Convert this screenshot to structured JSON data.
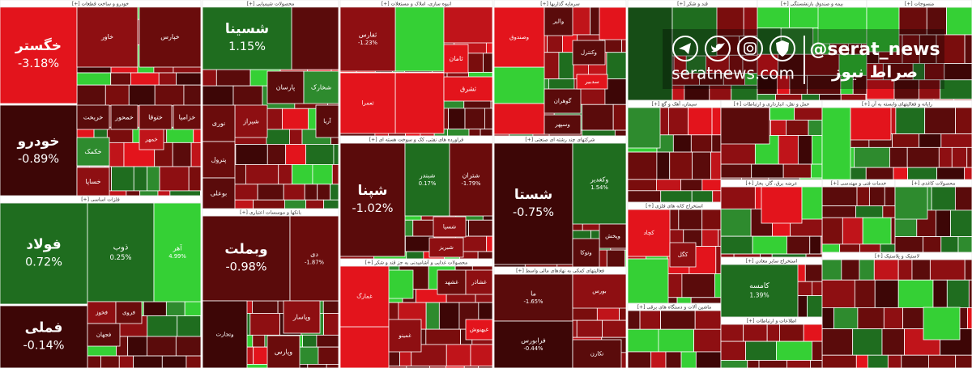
{
  "sectors": [
    {
      "title": "خودرو و ساخت قطعات [+]",
      "tiles": [
        {
          "label": "خگستر",
          "change": "-3.18%"
        },
        {
          "label": "خودرو",
          "change": "-0.89%"
        },
        {
          "label": "خاور"
        },
        {
          "label": "خپارس"
        },
        {
          "label": "خریخت"
        },
        {
          "label": "خمحور"
        },
        {
          "label": "ختوقا"
        },
        {
          "label": "خزامیا"
        },
        {
          "label": "خکمک"
        },
        {
          "label": "خمهر"
        },
        {
          "label": "خساپا"
        }
      ]
    },
    {
      "title": "فلزات اساسی [+]",
      "tiles": [
        {
          "label": "فولاد",
          "change": "0.72%"
        },
        {
          "label": "فملی",
          "change": "-0.14%"
        },
        {
          "label": "ذوب",
          "change": "0.25%"
        },
        {
          "label": "آهر",
          "change": "4.99%"
        },
        {
          "label": "فخوز"
        },
        {
          "label": "فروی"
        },
        {
          "label": "فجهان"
        }
      ]
    },
    {
      "title": "محصولات شیمیایی [+]",
      "tiles": [
        {
          "label": "شسینا",
          "change": "1.15%"
        },
        {
          "label": "پارسان"
        },
        {
          "label": "شخارک"
        },
        {
          "label": "شیراز"
        },
        {
          "label": "نوری"
        },
        {
          "label": "پترول"
        },
        {
          "label": "بوعلی"
        },
        {
          "label": "آریا"
        }
      ]
    },
    {
      "title": "بانکها و موسسات اعتباری [+]",
      "tiles": [
        {
          "label": "وبملت",
          "change": "-0.98%"
        },
        {
          "label": "دی",
          "change": "-1.87%"
        },
        {
          "label": "وتجارت"
        },
        {
          "label": "وپاسار"
        },
        {
          "label": "وپارس"
        }
      ]
    },
    {
      "title": "انبوه سازی، املاک و مستغلات [+]",
      "tiles": [
        {
          "label": "ثفارس",
          "change": "-1.23%"
        },
        {
          "label": "ثعمرا"
        },
        {
          "label": "ثشرق"
        },
        {
          "label": "ثامان"
        }
      ]
    },
    {
      "title": "فراورده های نفتی، کک و سوخت هسته ای [+]",
      "tiles": [
        {
          "label": "شپنا",
          "change": "-1.02%"
        },
        {
          "label": "شبندر",
          "change": "0.17%"
        },
        {
          "label": "شتران",
          "change": "-1.79%"
        },
        {
          "label": "شسپا"
        },
        {
          "label": "شبریز"
        }
      ]
    },
    {
      "title": "محصولات غذایی و آشامیدنی به جز قند و شکر [+]",
      "tiles": [
        {
          "label": "غمارگ"
        },
        {
          "label": "غشهد"
        },
        {
          "label": "غشاذر"
        },
        {
          "label": "غمینو"
        },
        {
          "label": "غبهنوش"
        }
      ]
    },
    {
      "title": "سرمایه گذاریها [+]",
      "tiles": [
        {
          "label": "وصندوق"
        },
        {
          "label": "والبر"
        },
        {
          "label": "وکنترل"
        },
        {
          "label": "گوهران"
        },
        {
          "label": "وسپهر"
        },
        {
          "label": "سدبیر"
        }
      ]
    },
    {
      "title": "شرکتهای چند رشته ای صنعتی [+]",
      "tiles": [
        {
          "label": "شستا",
          "change": "-0.75%"
        },
        {
          "label": "وکغدیر",
          "change": "1.54%"
        },
        {
          "label": "وپخش"
        },
        {
          "label": "وتوکا"
        }
      ]
    },
    {
      "title": "فعالیتهای کمکی به نهادهای مالی واسط [+]",
      "tiles": [
        {
          "label": "ما",
          "change": "-1.65%"
        },
        {
          "label": "فرابورس",
          "change": "-0.44%"
        },
        {
          "label": "بورس"
        },
        {
          "label": "تکارن"
        }
      ]
    },
    {
      "title": "قند و شکر [+]",
      "tiles": []
    },
    {
      "title": "سیمان، آهک و گچ [+]",
      "tiles": []
    },
    {
      "title": "استخراج کانه های فلزی [+]",
      "tiles": [
        {
          "label": "کچاد"
        },
        {
          "label": "کگل"
        }
      ]
    },
    {
      "title": "ماشین آلات و دستگاه های برقی [+]",
      "tiles": []
    },
    {
      "title": "حمل و نقل، انبارداری و ارتباطات [+]",
      "tiles": []
    },
    {
      "title": "استخراج سایر معادن [+]",
      "tiles": [
        {
          "label": "کامسه",
          "change": "1.39%"
        }
      ]
    },
    {
      "title": "بیمه و صندوق بازنشستگی [+]",
      "tiles": []
    },
    {
      "title": "منسوجات [+]",
      "tiles": []
    },
    {
      "title": "رایانه و فعالیتهای وابسته به آن [+]",
      "tiles": []
    },
    {
      "title": "خدمات فنی و مهندسی [+]",
      "tiles": []
    },
    {
      "title": "محصولات کاغذی [+]",
      "tiles": []
    },
    {
      "title": "لاستیک و پلاستیک [+]",
      "tiles": []
    },
    {
      "title": "اطلاعات و ارتباطات [+]",
      "tiles": []
    },
    {
      "title": "عرضه برق، گاز، بخار [+]",
      "tiles": []
    }
  ],
  "watermark": {
    "handle": "@serat_news",
    "name": "صراط نیوز",
    "site": "seratnews.com"
  }
}
